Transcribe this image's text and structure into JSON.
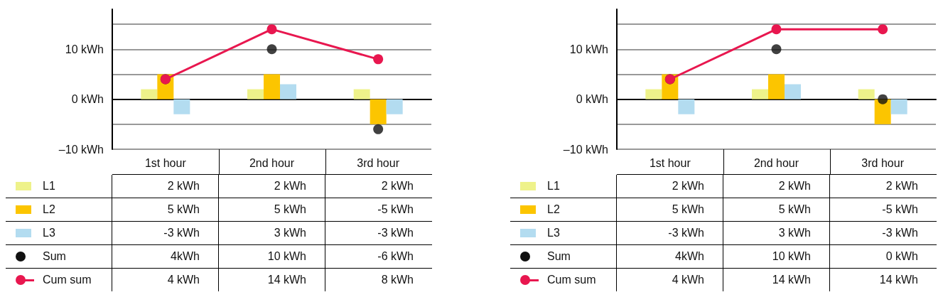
{
  "chart_data": [
    {
      "type": "bar",
      "categories": [
        "1st hour",
        "2nd hour",
        "3rd hour"
      ],
      "ylim": [
        -10,
        18
      ],
      "yticks": [
        {
          "value": -10,
          "label": "–10 kWh"
        },
        {
          "value": -5,
          "label": null
        },
        {
          "value": 0,
          "label": "0 kWh"
        },
        {
          "value": 5,
          "label": null
        },
        {
          "value": 10,
          "label": "10 kWh"
        },
        {
          "value": 15,
          "label": null
        }
      ],
      "grid": "y",
      "legend": "bottom",
      "marker": "circle",
      "series": [
        {
          "name": "L1",
          "color": "#eef28a",
          "values": [
            2,
            2,
            2
          ],
          "value_labels": [
            "2 kWh",
            "2 kWh",
            "2 kWh"
          ]
        },
        {
          "name": "L2",
          "color": "#fcc500",
          "values": [
            5,
            5,
            -5
          ],
          "value_labels": [
            "5 kWh",
            "5 kWh",
            "-5 kWh"
          ]
        },
        {
          "name": "L3",
          "color": "#b3dcf0",
          "values": [
            -3,
            3,
            -3
          ],
          "value_labels": [
            "-3 kWh",
            "3 kWh",
            "-3 kWh"
          ]
        },
        {
          "name": "Sum",
          "type": "scatter",
          "color": "#111111",
          "values": [
            4,
            10,
            -6
          ],
          "value_labels": [
            "4kWh",
            "10 kWh",
            "-6 kWh"
          ]
        },
        {
          "name": "Cum sum",
          "type": "line",
          "color": "#e8174f",
          "values": [
            4,
            14,
            8
          ],
          "value_labels": [
            "4 kWh",
            "14 kWh",
            "8 kWh"
          ]
        }
      ]
    },
    {
      "type": "bar",
      "categories": [
        "1st hour",
        "2nd hour",
        "3rd hour"
      ],
      "ylim": [
        -10,
        18
      ],
      "yticks": [
        {
          "value": -10,
          "label": "–10 kWh"
        },
        {
          "value": -5,
          "label": null
        },
        {
          "value": 0,
          "label": "0 kWh"
        },
        {
          "value": 5,
          "label": null
        },
        {
          "value": 10,
          "label": "10 kWh"
        },
        {
          "value": 15,
          "label": null
        }
      ],
      "grid": "y",
      "legend": "bottom",
      "marker": "circle",
      "series": [
        {
          "name": "L1",
          "color": "#eef28a",
          "values": [
            2,
            2,
            2
          ],
          "value_labels": [
            "2 kWh",
            "2 kWh",
            "2 kWh"
          ]
        },
        {
          "name": "L2",
          "color": "#fcc500",
          "values": [
            5,
            5,
            -5
          ],
          "value_labels": [
            "5 kWh",
            "5 kWh",
            "-5 kWh"
          ]
        },
        {
          "name": "L3",
          "color": "#b3dcf0",
          "values": [
            -3,
            3,
            -3
          ],
          "value_labels": [
            "-3 kWh",
            "3 kWh",
            "-3 kWh"
          ]
        },
        {
          "name": "Sum",
          "type": "scatter",
          "color": "#111111",
          "values": [
            4,
            10,
            0
          ],
          "value_labels": [
            "4kWh",
            "10 kWh",
            "0 kWh"
          ]
        },
        {
          "name": "Cum sum",
          "type": "line",
          "color": "#e8174f",
          "values": [
            4,
            14,
            14
          ],
          "value_labels": [
            "4 kWh",
            "14 kWh",
            "14 kWh"
          ]
        }
      ]
    }
  ]
}
